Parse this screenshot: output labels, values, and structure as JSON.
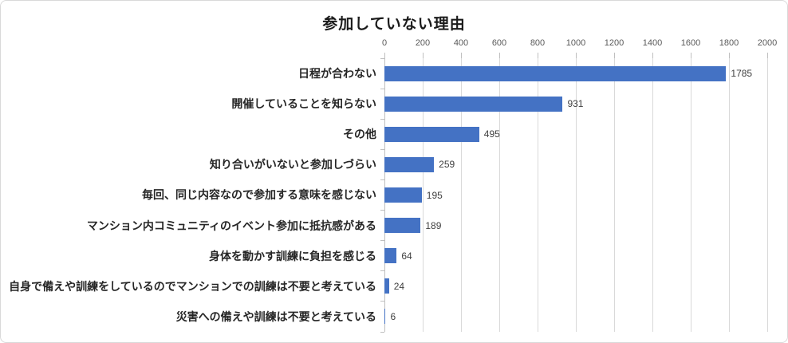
{
  "chart": {
    "title": "参加していない理由",
    "bar_color": "#4472C4",
    "gridline_color": "#D9D9D9",
    "axis_line_color": "#BFBFBF",
    "tick_label_color": "#595959",
    "category_label_color": "#262626",
    "value_label_color": "#404040"
  },
  "chart_data": {
    "type": "bar",
    "orientation": "horizontal",
    "title": "参加していない理由",
    "categories": [
      "日程が合わない",
      "開催していることを知らない",
      "その他",
      "知り合いがいないと参加しづらい",
      "毎回、同じ内容なので参加する意味を感じない",
      "マンション内コミュニティのイベント参加に抵抗感がある",
      "身体を動かす訓練に負担を感じる",
      "自身で備えや訓練をしているのでマンションでの訓練は不要と考えている",
      "災害への備えや訓練は不要と考えている"
    ],
    "values": [
      1785,
      931,
      495,
      259,
      195,
      189,
      64,
      24,
      6
    ],
    "value_labels": [
      "1785",
      "931",
      "495",
      "259",
      "195",
      "189",
      "64",
      "24",
      "6"
    ],
    "xlim": [
      0,
      2000
    ],
    "xticks": [
      0,
      200,
      400,
      600,
      800,
      1000,
      1200,
      1400,
      1600,
      1800,
      2000
    ],
    "xtick_labels": [
      "0",
      "200",
      "400",
      "600",
      "800",
      "1000",
      "1200",
      "1400",
      "1600",
      "1800",
      "2000"
    ],
    "grid": true,
    "value_axis_position": "top",
    "bar_color": "#4472C4"
  }
}
